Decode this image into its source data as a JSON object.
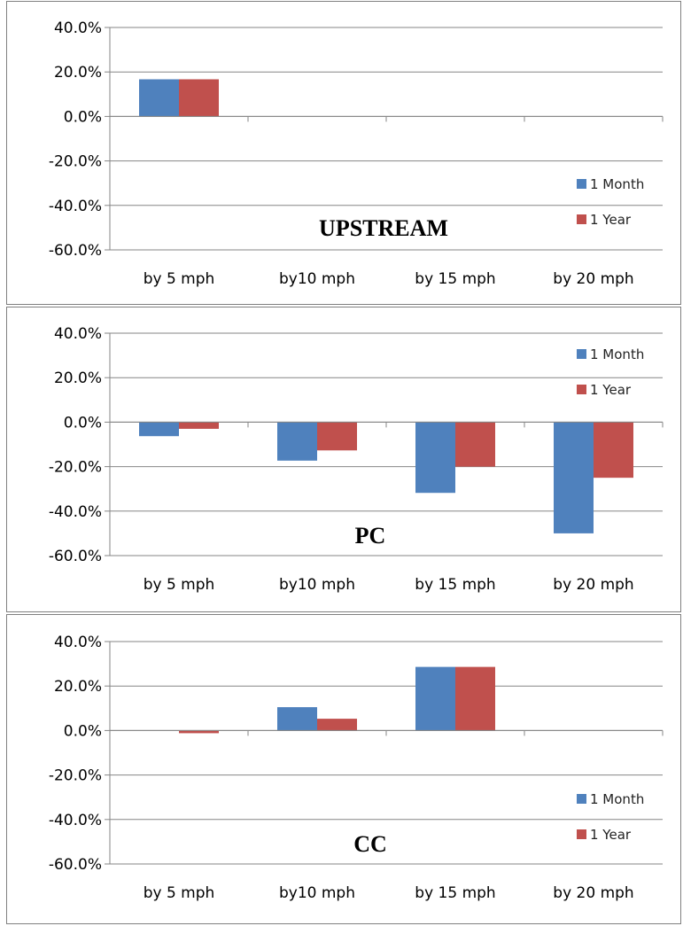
{
  "chart_data": [
    {
      "type": "bar",
      "title": "UPSTREAM",
      "categories": [
        "by 5 mph",
        "by10 mph",
        "by 15 mph",
        "by 20 mph"
      ],
      "series": [
        {
          "name": "1 Month",
          "values": [
            16.7,
            0,
            0,
            0
          ]
        },
        {
          "name": "1 Year",
          "values": [
            16.7,
            0,
            0,
            0
          ]
        }
      ],
      "ylim": [
        -60,
        40
      ],
      "yticks": [
        "40.0%",
        "20.0%",
        "0.0%",
        "-20.0%",
        "-40.0%",
        "-60.0%"
      ],
      "legend_position": "right-lower",
      "grid": true
    },
    {
      "type": "bar",
      "title": "PC",
      "categories": [
        "by 5 mph",
        "by10 mph",
        "by 15 mph",
        "by 20 mph"
      ],
      "series": [
        {
          "name": "1 Month",
          "values": [
            -6.3,
            -17.3,
            -31.8,
            -50.0
          ]
        },
        {
          "name": "1 Year",
          "values": [
            -3.0,
            -12.7,
            -20.0,
            -25.0
          ]
        }
      ],
      "ylim": [
        -60,
        40
      ],
      "yticks": [
        "40.0%",
        "20.0%",
        "0.0%",
        "-20.0%",
        "-40.0%",
        "-60.0%"
      ],
      "legend_position": "right-upper",
      "grid": true
    },
    {
      "type": "bar",
      "title": "CC",
      "categories": [
        "by 5 mph",
        "by10 mph",
        "by 15 mph",
        "by 20 mph"
      ],
      "series": [
        {
          "name": "1 Month",
          "values": [
            0,
            10.5,
            28.6,
            0
          ]
        },
        {
          "name": "1 Year",
          "values": [
            -1.2,
            5.3,
            28.6,
            0
          ]
        }
      ],
      "ylim": [
        -60,
        40
      ],
      "yticks": [
        "40.0%",
        "20.0%",
        "0.0%",
        "-20.0%",
        "-40.0%",
        "-60.0%"
      ],
      "legend_position": "right-lower",
      "grid": true
    }
  ],
  "colors": {
    "series_1": "#4F81BD",
    "series_2": "#C0504D",
    "grid": "#868686",
    "axis": "#868686"
  }
}
